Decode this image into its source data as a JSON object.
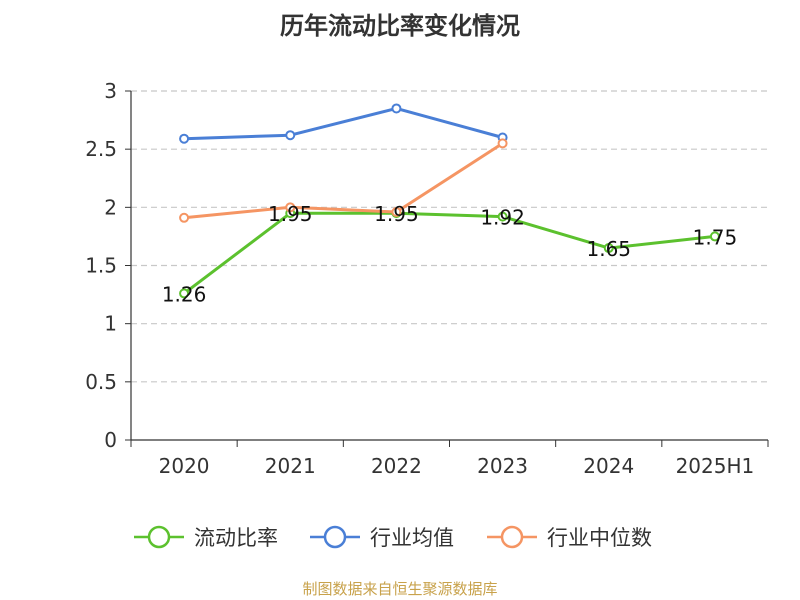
{
  "chart_data": {
    "type": "line",
    "title": "历年流动比率变化情况",
    "categories": [
      "2020",
      "2021",
      "2022",
      "2023",
      "2024",
      "2025H1"
    ],
    "ylim": [
      0,
      3
    ],
    "yticks": [
      "0",
      "0.5",
      "1",
      "1.5",
      "2",
      "2.5",
      "3"
    ],
    "grid": true,
    "legend_position": "bottom",
    "series": [
      {
        "name": "流动比率",
        "color": "#5cc12e",
        "values": [
          1.26,
          1.95,
          1.95,
          1.92,
          1.65,
          1.75
        ],
        "labels": [
          "1.26",
          "1.95",
          "1.95",
          "1.92",
          "1.65",
          "1.75"
        ]
      },
      {
        "name": "行业均值",
        "color": "#4a7fd6",
        "values": [
          2.59,
          2.62,
          2.85,
          2.6,
          null,
          null
        ]
      },
      {
        "name": "行业中位数",
        "color": "#f59563",
        "values": [
          1.91,
          2.0,
          1.96,
          2.55,
          null,
          null
        ]
      }
    ]
  },
  "source": "制图数据来自恒生聚源数据库"
}
